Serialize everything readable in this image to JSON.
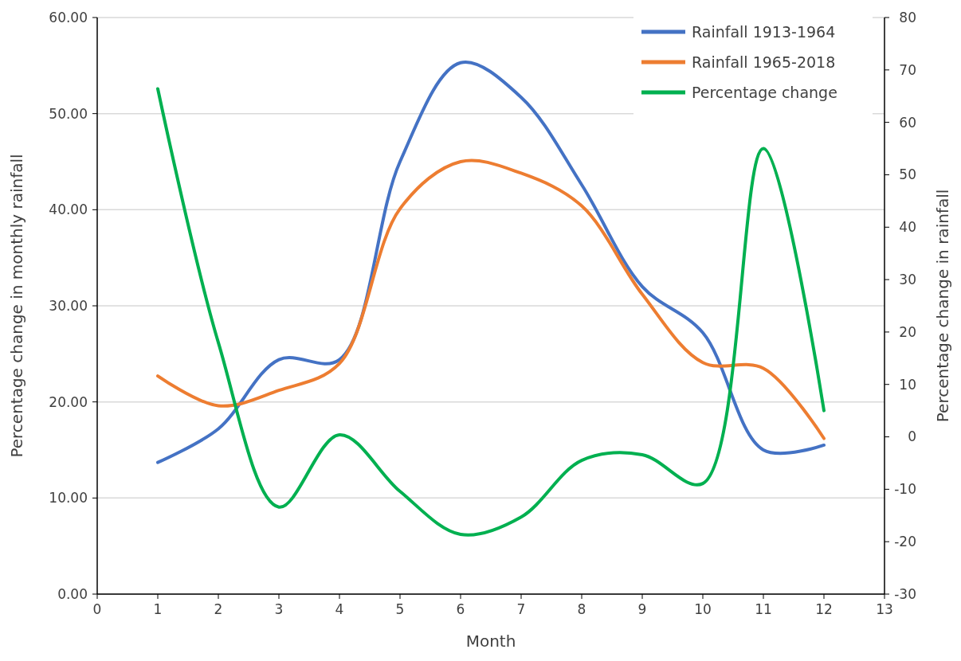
{
  "chart_data": {
    "type": "line",
    "xlabel": "Month",
    "ylabel": "Percentage change in monthly rainfall",
    "y2label": "Percentage change in rainfall",
    "x": [
      1,
      2,
      3,
      4,
      5,
      6,
      7,
      8,
      9,
      10,
      11,
      12
    ],
    "xlim": [
      0,
      13
    ],
    "xticks": [
      0,
      1,
      2,
      3,
      4,
      5,
      6,
      7,
      8,
      9,
      10,
      11,
      12,
      13
    ],
    "ylim": [
      0,
      60
    ],
    "yticks": [
      {
        "value": 0,
        "label": "0.00"
      },
      {
        "value": 10,
        "label": "10.00"
      },
      {
        "value": 20,
        "label": "20.00"
      },
      {
        "value": 30,
        "label": "30.00"
      },
      {
        "value": 40,
        "label": "40.00"
      },
      {
        "value": 50,
        "label": "50.00"
      },
      {
        "value": 60,
        "label": "60.00"
      }
    ],
    "y2lim": [
      -30,
      80
    ],
    "y2ticks": [
      -30,
      -20,
      -10,
      0,
      10,
      20,
      30,
      40,
      50,
      60,
      70,
      80
    ],
    "series": [
      {
        "name": "Rainfall 1913-1964",
        "color": "#4472c4",
        "values": [
          13.7,
          17.2,
          24.4,
          24.4,
          45.0,
          55.3,
          51.7,
          42.6,
          32.0,
          27.2,
          15.0,
          15.5
        ]
      },
      {
        "name": "Rainfall 1965-2018",
        "color": "#ed7d31",
        "values": [
          22.7,
          19.6,
          21.2,
          24.0,
          40.1,
          45.0,
          43.8,
          40.4,
          31.2,
          24.1,
          23.5,
          16.2
        ]
      },
      {
        "name": "Percentage change",
        "color": "#00b050",
        "axis": "y2",
        "values": [
          66.4,
          18.0,
          -13.4,
          0.4,
          -10.4,
          -18.6,
          -15.3,
          -4.5,
          -3.4,
          -8.9,
          55.0,
          5.0
        ]
      }
    ],
    "grid": "y",
    "legend": "top right",
    "line_style": "solid",
    "marker": "none"
  }
}
